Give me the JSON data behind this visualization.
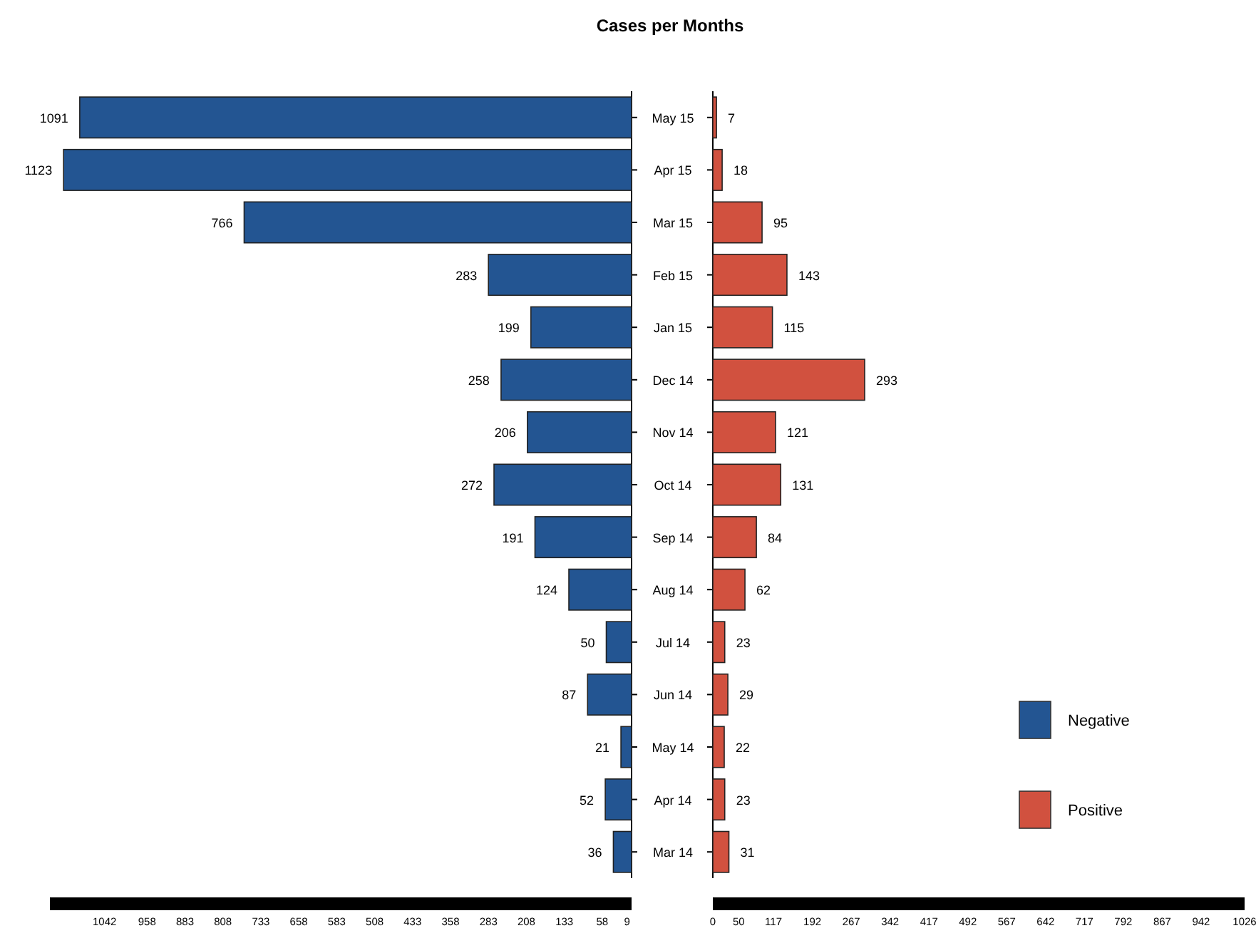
{
  "chart_data": [
    {
      "type": "bar",
      "title": "Cases per Months",
      "orientation": "horizontal",
      "categories": [
        "May 15",
        "Apr 15",
        "Mar 15",
        "Feb 15",
        "Jan 15",
        "Dec 14",
        "Nov 14",
        "Oct 14",
        "Sep 14",
        "Aug 14",
        "Jul 14",
        "Jun 14",
        "May 14",
        "Apr 14",
        "Mar 14"
      ],
      "series": [
        {
          "name": "Negative",
          "color": "#235592",
          "values": [
            1091,
            1123,
            766,
            283,
            199,
            258,
            206,
            272,
            191,
            124,
            50,
            87,
            21,
            52,
            36
          ]
        }
      ],
      "xlim": [
        1150,
        0
      ],
      "xticks": [
        1042,
        958,
        883,
        808,
        733,
        658,
        583,
        508,
        433,
        358,
        283,
        208,
        133,
        58,
        9
      ],
      "data_labels": true,
      "legend": "bottom right"
    },
    {
      "type": "bar",
      "orientation": "horizontal",
      "categories": [
        null,
        null,
        null,
        null,
        null,
        null,
        null,
        null,
        null,
        null,
        null,
        null,
        null,
        null,
        null
      ],
      "series": [
        {
          "name": "Positive",
          "color": "#d1513f",
          "values": [
            7,
            18,
            95,
            143,
            115,
            293,
            121,
            131,
            84,
            62,
            23,
            29,
            22,
            23,
            31
          ]
        }
      ],
      "xlim": [
        0,
        1026
      ],
      "xticks": [
        0,
        50,
        117,
        192,
        267,
        342,
        417,
        492,
        567,
        642,
        717,
        792,
        867,
        942,
        1026
      ],
      "data_labels": true,
      "legend": "bottom right",
      "tick_labels": "x"
    }
  ]
}
